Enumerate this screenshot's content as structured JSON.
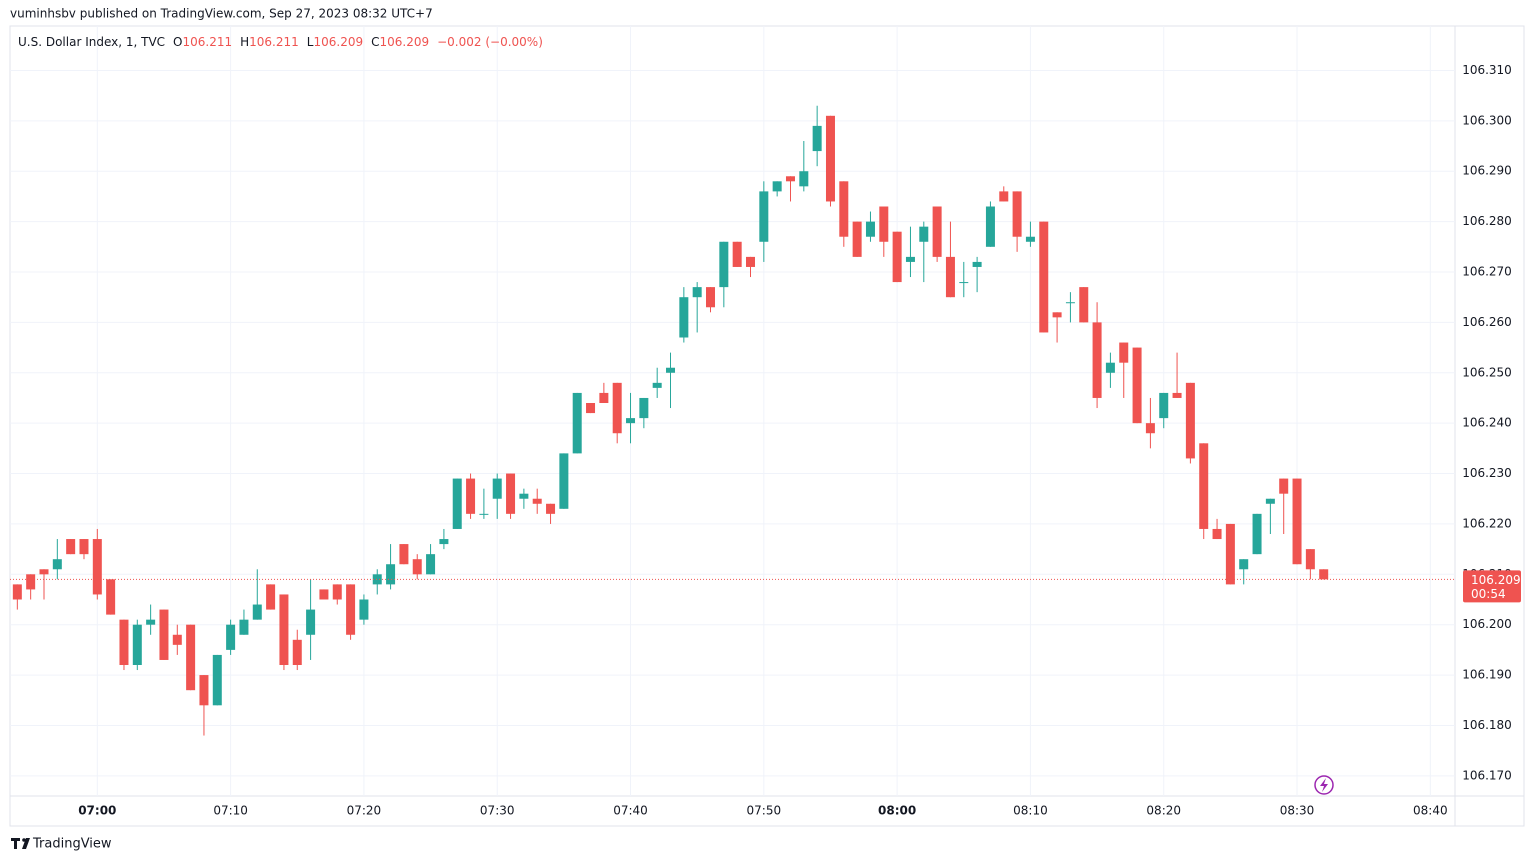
{
  "header": {
    "publisher": "vuminhsbv published on TradingView.com, Sep 27, 2023 08:32 UTC+7"
  },
  "legend": {
    "symbol": "U.S. Dollar Index, 1, TVC",
    "open_label": "O",
    "open": 106.211,
    "high_label": "H",
    "high": 106.211,
    "low_label": "L",
    "low": 106.209,
    "close_label": "C",
    "close": 106.209,
    "change": "−0.002 (−0.00%)"
  },
  "footer": {
    "brand": "TradingView"
  },
  "chart_data": {
    "type": "candlestick",
    "up_color": "#26a69a",
    "down_color": "#ef5350",
    "grid": true,
    "x": [
      "06:54",
      "06:55",
      "06:56",
      "06:57",
      "06:58",
      "06:59",
      "07:00",
      "07:01",
      "07:02",
      "07:03",
      "07:04",
      "07:05",
      "07:06",
      "07:07",
      "07:08",
      "07:09",
      "07:10",
      "07:11",
      "07:12",
      "07:13",
      "07:14",
      "07:15",
      "07:16",
      "07:17",
      "07:18",
      "07:19",
      "07:20",
      "07:21",
      "07:22",
      "07:23",
      "07:24",
      "07:25",
      "07:26",
      "07:27",
      "07:28",
      "07:29",
      "07:30",
      "07:31",
      "07:32",
      "07:33",
      "07:34",
      "07:35",
      "07:36",
      "07:37",
      "07:38",
      "07:39",
      "07:40",
      "07:41",
      "07:42",
      "07:43",
      "07:44",
      "07:45",
      "07:46",
      "07:47",
      "07:48",
      "07:49",
      "07:50",
      "07:51",
      "07:52",
      "07:53",
      "07:54",
      "07:55",
      "07:56",
      "07:57",
      "07:58",
      "07:59",
      "08:00",
      "08:01",
      "08:02",
      "08:03",
      "08:04",
      "08:05",
      "08:06",
      "08:07",
      "08:08",
      "08:09",
      "08:10",
      "08:11",
      "08:12",
      "08:13",
      "08:14",
      "08:15",
      "08:16",
      "08:17",
      "08:18",
      "08:19",
      "08:20",
      "08:21",
      "08:22",
      "08:23",
      "08:24",
      "08:25",
      "08:26",
      "08:27",
      "08:28",
      "08:29",
      "08:30",
      "08:31",
      "08:32"
    ],
    "open": [
      106.208,
      106.21,
      106.211,
      106.211,
      106.217,
      106.217,
      106.217,
      106.209,
      106.201,
      106.192,
      106.2,
      106.203,
      106.198,
      106.2,
      106.19,
      106.184,
      106.195,
      106.198,
      106.201,
      106.208,
      106.206,
      106.197,
      106.198,
      106.207,
      106.208,
      106.208,
      106.201,
      106.208,
      106.208,
      106.216,
      106.213,
      106.21,
      106.216,
      106.219,
      106.229,
      106.222,
      106.225,
      106.23,
      106.225,
      106.225,
      106.224,
      106.223,
      106.234,
      106.244,
      106.246,
      106.248,
      106.24,
      106.241,
      106.247,
      106.25,
      106.257,
      106.265,
      106.267,
      106.267,
      106.276,
      106.273,
      106.276,
      106.286,
      106.289,
      106.287,
      106.294,
      106.301,
      106.288,
      106.28,
      106.277,
      106.283,
      106.278,
      106.272,
      106.276,
      106.283,
      106.273,
      106.268,
      106.271,
      106.275,
      106.286,
      106.286,
      106.276,
      106.28,
      106.262,
      106.264,
      106.267,
      106.26,
      106.25,
      106.256,
      106.255,
      106.24,
      106.241,
      106.246,
      106.248,
      106.236,
      106.219,
      106.22,
      106.211,
      106.214,
      106.224,
      106.229,
      106.229,
      106.215,
      106.211
    ],
    "high": [
      106.208,
      106.21,
      106.211,
      106.217,
      106.217,
      106.217,
      106.219,
      106.209,
      106.201,
      106.201,
      106.204,
      106.203,
      106.2,
      106.2,
      106.19,
      106.194,
      106.201,
      106.203,
      106.211,
      106.208,
      106.206,
      106.199,
      106.209,
      106.207,
      106.208,
      106.208,
      106.206,
      106.211,
      106.216,
      106.216,
      106.214,
      106.216,
      106.219,
      106.229,
      106.23,
      106.227,
      106.23,
      106.23,
      106.227,
      106.227,
      106.224,
      106.234,
      106.246,
      106.244,
      106.248,
      106.248,
      106.246,
      106.245,
      106.251,
      106.254,
      106.267,
      106.268,
      106.267,
      106.276,
      106.276,
      106.273,
      106.288,
      106.288,
      106.289,
      106.296,
      106.303,
      106.301,
      106.288,
      106.28,
      106.282,
      106.283,
      106.278,
      106.279,
      106.28,
      106.283,
      106.28,
      106.272,
      106.273,
      106.284,
      106.287,
      106.286,
      106.28,
      106.28,
      106.262,
      106.266,
      106.267,
      106.264,
      106.254,
      106.256,
      106.255,
      106.245,
      106.246,
      106.254,
      106.248,
      106.236,
      106.221,
      106.22,
      106.213,
      106.222,
      106.225,
      106.229,
      106.229,
      106.215,
      106.211
    ],
    "low": [
      106.203,
      106.205,
      106.205,
      106.209,
      106.214,
      106.213,
      106.205,
      106.202,
      106.191,
      106.191,
      106.198,
      106.193,
      106.194,
      106.187,
      106.178,
      106.184,
      106.194,
      106.198,
      106.201,
      106.203,
      106.191,
      106.191,
      106.193,
      106.205,
      106.204,
      106.197,
      106.2,
      106.206,
      106.207,
      106.212,
      106.209,
      106.21,
      106.215,
      106.219,
      106.221,
      106.221,
      106.221,
      106.221,
      106.223,
      106.222,
      106.22,
      106.223,
      106.234,
      106.242,
      106.244,
      106.236,
      106.236,
      106.239,
      106.245,
      106.243,
      106.256,
      106.258,
      106.262,
      106.263,
      106.271,
      106.269,
      106.272,
      106.285,
      106.284,
      106.286,
      106.291,
      106.283,
      106.275,
      106.273,
      106.276,
      106.273,
      106.268,
      106.269,
      106.268,
      106.272,
      106.265,
      106.265,
      106.266,
      106.275,
      106.284,
      106.274,
      106.275,
      106.258,
      106.256,
      106.26,
      106.26,
      106.243,
      106.247,
      106.245,
      106.24,
      106.235,
      106.239,
      106.245,
      106.232,
      106.217,
      106.217,
      106.208,
      106.208,
      106.214,
      106.218,
      106.218,
      106.212,
      106.209,
      106.209
    ],
    "close": [
      106.205,
      106.207,
      106.21,
      106.213,
      106.214,
      106.214,
      106.206,
      106.202,
      106.192,
      106.2,
      106.201,
      106.193,
      106.196,
      106.187,
      106.184,
      106.194,
      106.2,
      106.201,
      106.204,
      106.203,
      106.192,
      106.192,
      106.203,
      106.205,
      106.205,
      106.198,
      106.205,
      106.21,
      106.212,
      106.212,
      106.21,
      106.214,
      106.217,
      106.229,
      106.222,
      106.222,
      106.229,
      106.222,
      106.226,
      106.224,
      106.222,
      106.234,
      106.246,
      106.242,
      106.244,
      106.238,
      106.241,
      106.245,
      106.248,
      106.251,
      106.265,
      106.267,
      106.263,
      106.276,
      106.271,
      106.271,
      106.286,
      106.288,
      106.288,
      106.29,
      106.299,
      106.284,
      106.277,
      106.273,
      106.28,
      106.276,
      106.268,
      106.273,
      106.279,
      106.273,
      106.265,
      106.268,
      106.272,
      106.283,
      106.284,
      106.277,
      106.277,
      106.258,
      106.261,
      106.264,
      106.26,
      106.245,
      106.252,
      106.252,
      106.24,
      106.238,
      106.246,
      106.245,
      106.233,
      106.219,
      106.217,
      106.208,
      106.213,
      106.222,
      106.225,
      106.226,
      106.212,
      106.211,
      106.209
    ],
    "xlim": [
      "06:53",
      "08:42"
    ],
    "xticks": [
      "07:00",
      "07:10",
      "07:20",
      "07:30",
      "07:40",
      "07:50",
      "08:00",
      "08:10",
      "08:20",
      "08:30",
      "08:40"
    ],
    "ylim": [
      106.166,
      106.322
    ],
    "yticks": [
      {
        "value": 106.17,
        "label": "106.170"
      },
      {
        "value": 106.18,
        "label": "106.180"
      },
      {
        "value": 106.19,
        "label": "106.190"
      },
      {
        "value": 106.2,
        "label": "106.200"
      },
      {
        "value": 106.21,
        "label": "106.210"
      },
      {
        "value": 106.22,
        "label": "106.220"
      },
      {
        "value": 106.23,
        "label": "106.230"
      },
      {
        "value": 106.24,
        "label": "106.240"
      },
      {
        "value": 106.25,
        "label": "106.250"
      },
      {
        "value": 106.26,
        "label": "106.260"
      },
      {
        "value": 106.27,
        "label": "106.270"
      },
      {
        "value": 106.28,
        "label": "106.280"
      },
      {
        "value": 106.29,
        "label": "106.290"
      },
      {
        "value": 106.3,
        "label": "106.300"
      },
      {
        "value": 106.31,
        "label": "106.310"
      }
    ],
    "last_price": {
      "value": 106.209,
      "countdown": "00:54"
    }
  }
}
